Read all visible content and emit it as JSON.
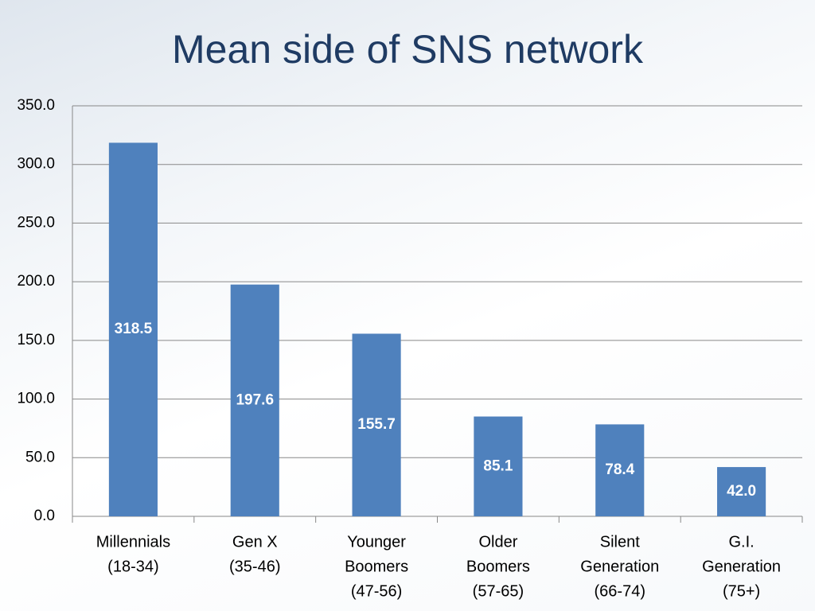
{
  "chart_data": {
    "type": "bar",
    "title": "Mean side of SNS network",
    "categories": [
      [
        "Millennials",
        "(18-34)"
      ],
      [
        "Gen X",
        "(35-46)"
      ],
      [
        "Younger",
        "Boomers",
        "(47-56)"
      ],
      [
        "Older",
        "Boomers",
        "(57-65)"
      ],
      [
        "Silent",
        "Generation",
        "(66-74)"
      ],
      [
        "G.I.",
        "Generation",
        "(75+)"
      ]
    ],
    "values": [
      318.5,
      197.6,
      155.7,
      85.1,
      78.4,
      42.0
    ],
    "value_labels": [
      "318.5",
      "197.6",
      "155.7",
      "85.1",
      "78.4",
      "42.0"
    ],
    "color": "#4f81bd",
    "ylim": [
      0,
      350
    ],
    "yticks": [
      {
        "value": 0,
        "label": "0.0"
      },
      {
        "value": 50,
        "label": "50.0"
      },
      {
        "value": 100,
        "label": "100.0"
      },
      {
        "value": 150,
        "label": "150.0"
      },
      {
        "value": 200,
        "label": "200.0"
      },
      {
        "value": 250,
        "label": "250.0"
      },
      {
        "value": 300,
        "label": "300.0"
      },
      {
        "value": 350,
        "label": "350.0"
      }
    ],
    "grid": true
  }
}
